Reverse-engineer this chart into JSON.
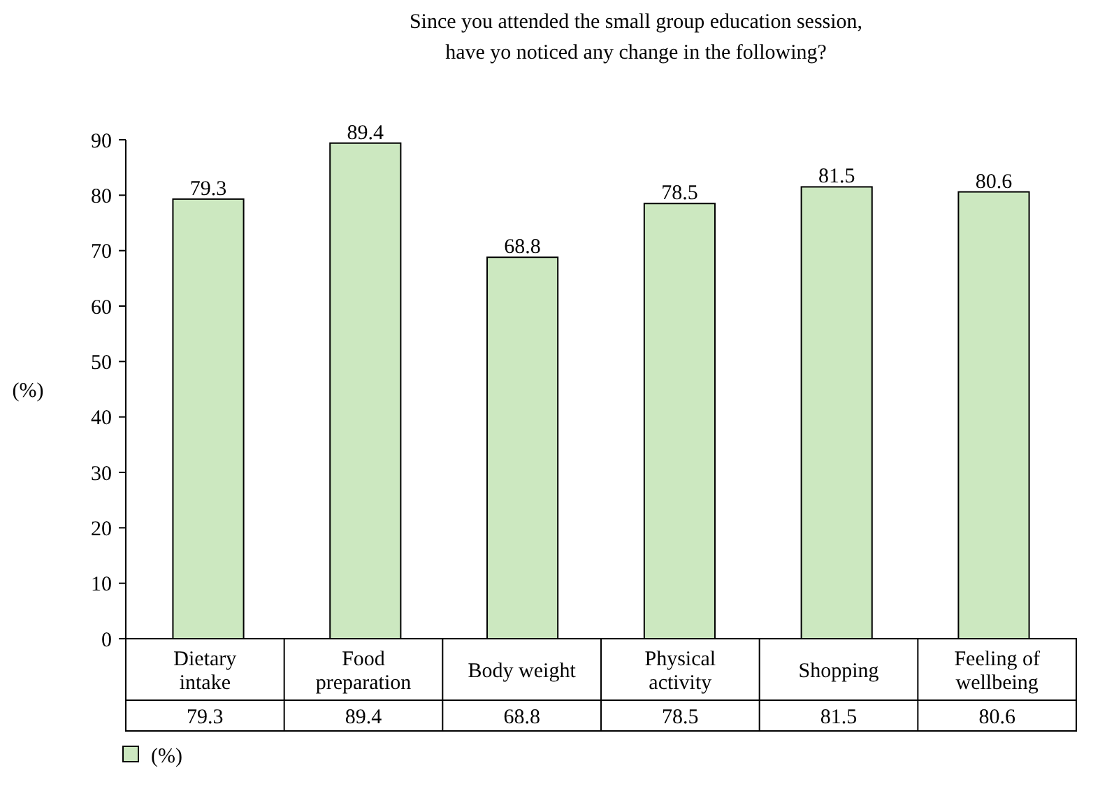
{
  "chart_data": {
    "type": "bar",
    "title": "Since you attended the small group education session, have yo noticed any change in the following?",
    "ylabel": "(%)",
    "categories": [
      "Dietary intake",
      "Food preparation",
      "Body weight",
      "Physical activity",
      "Shopping",
      "Feeling of wellbeing"
    ],
    "series": [
      {
        "name": "(%)",
        "color": "#cce8c0",
        "values": [
          79.3,
          89.4,
          68.8,
          78.5,
          81.5,
          80.6
        ],
        "value_labels": [
          "79.3",
          "89.4",
          "68.8",
          "78.5",
          "81.5",
          "80.6"
        ]
      }
    ],
    "ylim": [
      0,
      90
    ],
    "yticks": [
      0,
      10,
      20,
      30,
      40,
      50,
      60,
      70,
      80,
      90
    ],
    "annotations": [
      "79.3",
      "89.4",
      "68.8",
      "78.5",
      "81.5",
      "80.6"
    ],
    "grid": false,
    "legend": "bottom left"
  }
}
